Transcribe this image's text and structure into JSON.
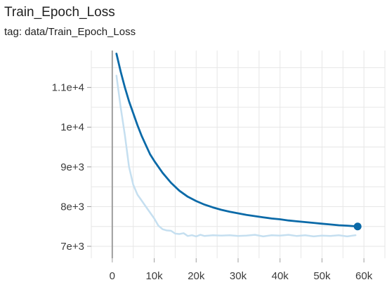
{
  "card": {
    "title": "Train_Epoch_Loss",
    "tag": "tag: data/Train_Epoch_Loss"
  },
  "chart_data": {
    "type": "line",
    "title": "Train_Epoch_Loss",
    "xlabel": "",
    "ylabel": "",
    "xlim": [
      -5000,
      65000
    ],
    "ylim": [
      6700,
      11930
    ],
    "x_ticks": [
      0,
      10000,
      20000,
      30000,
      40000,
      50000,
      60000
    ],
    "x_tick_labels": [
      "0",
      "10k",
      "20k",
      "30k",
      "40k",
      "50k",
      "60k"
    ],
    "y_ticks": [
      7000,
      8000,
      9000,
      10000,
      11000
    ],
    "y_tick_labels": [
      "7e+3",
      "8e+3",
      "9e+3",
      "1e+4",
      "1.1e+4"
    ],
    "grid": true,
    "colors": {
      "smoothed": "#0b6aa8",
      "raw": "#c5dff0",
      "grid": "#e6e6e6",
      "zero_axis": "#9e9e9e"
    },
    "series": [
      {
        "role": "raw",
        "x": [
          1000,
          2000,
          3000,
          4000,
          5000,
          6000,
          7000,
          8000,
          9000,
          10000,
          11000,
          12000,
          13000,
          14000,
          15000,
          16000,
          17000,
          18000,
          19000,
          20000,
          21000,
          22000,
          24000,
          26000,
          28000,
          30000,
          32000,
          34000,
          36000,
          38000,
          40000,
          42000,
          44000,
          46000,
          48000,
          50000,
          52000,
          54000,
          56000,
          58000
        ],
        "y": [
          11300,
          10500,
          9800,
          9000,
          8550,
          8300,
          8150,
          8000,
          7850,
          7700,
          7520,
          7430,
          7400,
          7390,
          7320,
          7310,
          7330,
          7260,
          7280,
          7250,
          7290,
          7260,
          7280,
          7270,
          7280,
          7260,
          7270,
          7290,
          7250,
          7280,
          7270,
          7290,
          7260,
          7280,
          7250,
          7270,
          7260,
          7280,
          7250,
          7280
        ]
      },
      {
        "role": "smoothed",
        "x": [
          1000,
          2000,
          3000,
          4000,
          5000,
          6000,
          7000,
          8000,
          9000,
          10000,
          12000,
          14000,
          16000,
          18000,
          20000,
          22000,
          24000,
          26000,
          28000,
          30000,
          32000,
          34000,
          36000,
          38000,
          40000,
          42000,
          44000,
          46000,
          48000,
          50000,
          52000,
          54000,
          56000,
          58500
        ],
        "y": [
          11850,
          11400,
          11000,
          10650,
          10350,
          10050,
          9780,
          9550,
          9320,
          9150,
          8850,
          8600,
          8400,
          8250,
          8140,
          8050,
          7980,
          7920,
          7870,
          7830,
          7790,
          7760,
          7730,
          7700,
          7680,
          7650,
          7630,
          7610,
          7590,
          7570,
          7550,
          7530,
          7520,
          7500
        ]
      }
    ],
    "last_point": {
      "x": 58500,
      "y": 7500
    }
  }
}
